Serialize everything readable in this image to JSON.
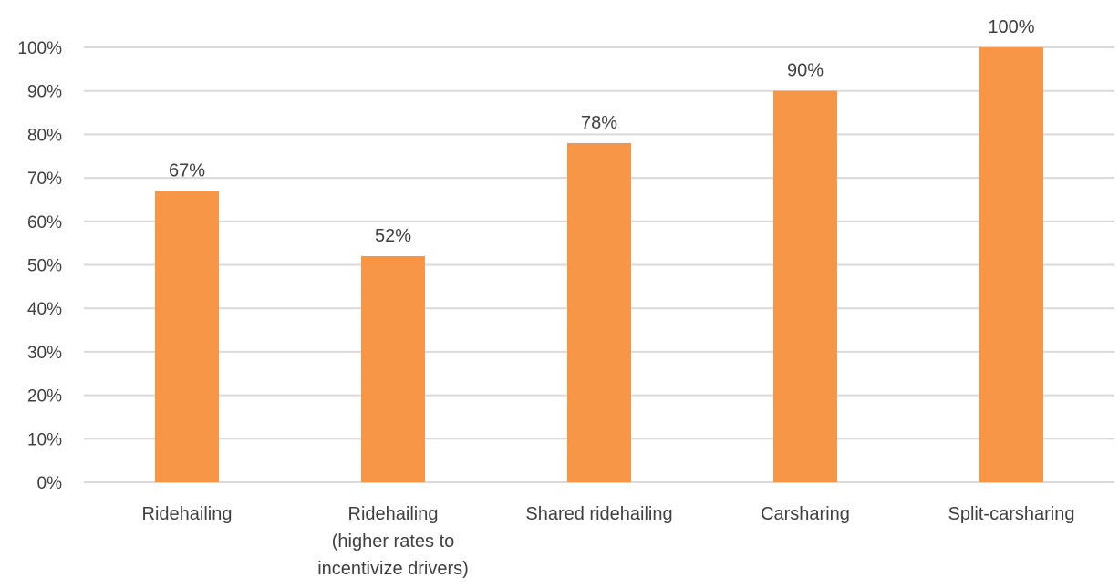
{
  "chart_data": {
    "type": "bar",
    "categories": [
      [
        "Ridehailing"
      ],
      [
        "Ridehailing",
        "(higher rates to",
        "incentivize drivers)"
      ],
      [
        "Shared ridehailing"
      ],
      [
        "Carsharing"
      ],
      [
        "Split-carsharing"
      ]
    ],
    "values": [
      67,
      52,
      78,
      90,
      100
    ],
    "data_labels": [
      "67%",
      "52%",
      "78%",
      "90%",
      "100%"
    ],
    "ylim": [
      0,
      100
    ],
    "yticks": [
      0,
      10,
      20,
      30,
      40,
      50,
      60,
      70,
      80,
      90,
      100
    ],
    "ytick_labels": [
      "0%",
      "10%",
      "20%",
      "30%",
      "40%",
      "50%",
      "60%",
      "70%",
      "80%",
      "90%",
      "100%"
    ],
    "grid": true,
    "legend": false,
    "title": "",
    "xlabel": "",
    "ylabel": "",
    "colors": {
      "bar": "#F79646",
      "grid": "#D9D9D9",
      "text": "#404040"
    }
  }
}
